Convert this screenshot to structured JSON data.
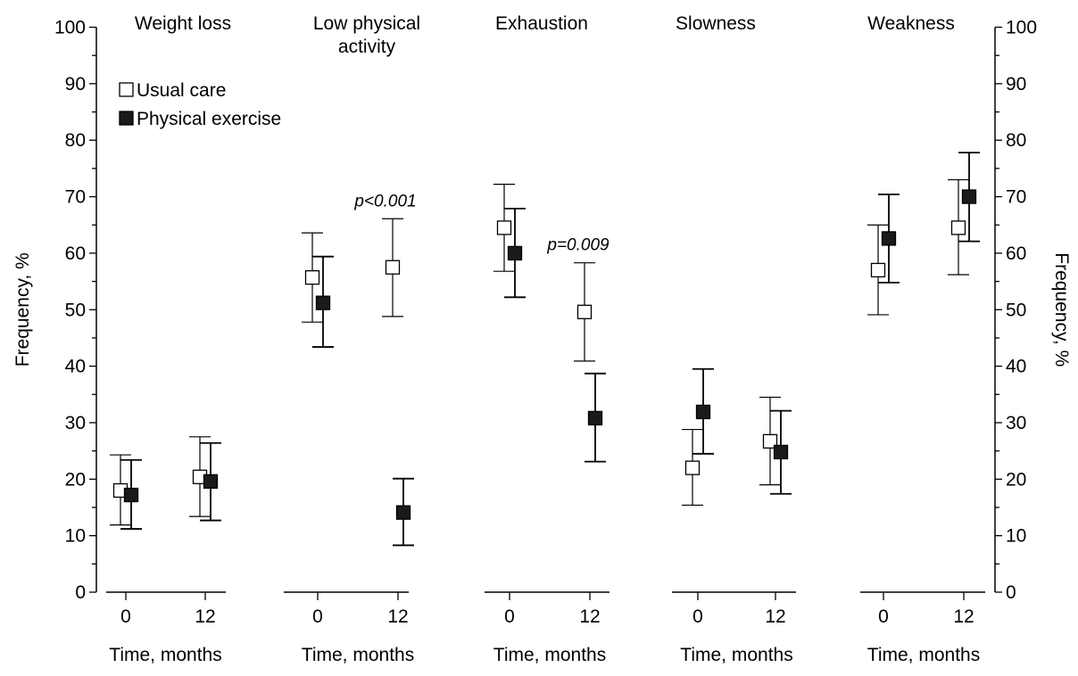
{
  "chart_data": {
    "type": "scatter",
    "ylabel": "Frequency, %",
    "ylabel_right": "Frequency, %",
    "ylim": [
      0,
      100
    ],
    "yticks": [
      "0",
      "10",
      "20",
      "30",
      "40",
      "50",
      "60",
      "70",
      "80",
      "90",
      "100"
    ],
    "xlabel": "Time, months",
    "xticks": [
      "0",
      "12"
    ],
    "legend": {
      "placement": "top-left",
      "entries": [
        {
          "label": "Usual care",
          "marker": "open-square",
          "color": "#ffffff"
        },
        {
          "label": "Physical exercise",
          "marker": "filled-square",
          "color": "#1a1a1a"
        }
      ]
    },
    "panels": [
      {
        "title": [
          "Weight loss"
        ],
        "series": [
          {
            "name": "Usual care",
            "points": [
              {
                "time": 0,
                "y": 18.0,
                "low": 11.9,
                "high": 24.3
              },
              {
                "time": 12,
                "y": 20.4,
                "low": 13.4,
                "high": 27.5
              }
            ]
          },
          {
            "name": "Physical exercise",
            "points": [
              {
                "time": 0,
                "y": 17.2,
                "low": 11.2,
                "high": 23.4
              },
              {
                "time": 12,
                "y": 19.6,
                "low": 12.7,
                "high": 26.4
              }
            ]
          }
        ],
        "annotation": ""
      },
      {
        "title": [
          "Low physical",
          "activity"
        ],
        "series": [
          {
            "name": "Usual care",
            "points": [
              {
                "time": 0,
                "y": 55.7,
                "low": 47.8,
                "high": 63.6
              },
              {
                "time": 12,
                "y": 57.5,
                "low": 48.8,
                "high": 66.1
              }
            ]
          },
          {
            "name": "Physical exercise",
            "points": [
              {
                "time": 0,
                "y": 51.2,
                "low": 43.4,
                "high": 59.4
              },
              {
                "time": 12,
                "y": 14.1,
                "low": 8.3,
                "high": 20.1
              }
            ]
          }
        ],
        "annotation": "p<0.001"
      },
      {
        "title": [
          "Exhaustion"
        ],
        "series": [
          {
            "name": "Usual care",
            "points": [
              {
                "time": 0,
                "y": 64.5,
                "low": 56.8,
                "high": 72.2
              },
              {
                "time": 12,
                "y": 49.6,
                "low": 40.9,
                "high": 58.3
              }
            ]
          },
          {
            "name": "Physical exercise",
            "points": [
              {
                "time": 0,
                "y": 60.0,
                "low": 52.2,
                "high": 67.9
              },
              {
                "time": 12,
                "y": 30.8,
                "low": 23.1,
                "high": 38.7
              }
            ]
          }
        ],
        "annotation": "p=0.009"
      },
      {
        "title": [
          "Slowness"
        ],
        "series": [
          {
            "name": "Usual care",
            "points": [
              {
                "time": 0,
                "y": 22.0,
                "low": 15.4,
                "high": 28.8
              },
              {
                "time": 12,
                "y": 26.7,
                "low": 19.0,
                "high": 34.5
              }
            ]
          },
          {
            "name": "Physical exercise",
            "points": [
              {
                "time": 0,
                "y": 31.9,
                "low": 24.5,
                "high": 39.5
              },
              {
                "time": 12,
                "y": 24.8,
                "low": 17.4,
                "high": 32.1
              }
            ]
          }
        ],
        "annotation": ""
      },
      {
        "title": [
          "Weakness"
        ],
        "series": [
          {
            "name": "Usual care",
            "points": [
              {
                "time": 0,
                "y": 57.0,
                "low": 49.1,
                "high": 65.0
              },
              {
                "time": 12,
                "y": 64.5,
                "low": 56.2,
                "high": 73.0
              }
            ]
          },
          {
            "name": "Physical exercise",
            "points": [
              {
                "time": 0,
                "y": 62.6,
                "low": 54.8,
                "high": 70.4
              },
              {
                "time": 12,
                "y": 70.0,
                "low": 62.1,
                "high": 77.8
              }
            ]
          }
        ],
        "annotation": ""
      }
    ]
  }
}
